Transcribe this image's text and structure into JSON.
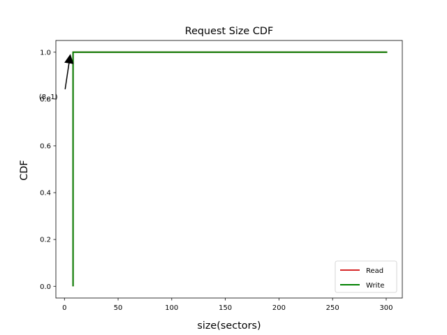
{
  "chart_data": {
    "type": "line",
    "title": "Request Size CDF",
    "xlabel": "size(sectors)",
    "ylabel": "CDF",
    "xlim": [
      -8,
      315
    ],
    "ylim": [
      -0.05,
      1.05
    ],
    "xticks": [
      0,
      50,
      100,
      150,
      200,
      250,
      300
    ],
    "yticks": [
      0.0,
      0.2,
      0.4,
      0.6,
      0.8,
      1.0
    ],
    "xtick_labels": [
      "0",
      "50",
      "100",
      "150",
      "200",
      "250",
      "300"
    ],
    "ytick_labels": [
      "0.0",
      "0.2",
      "0.4",
      "0.6",
      "0.8",
      "1.0"
    ],
    "grid": false,
    "legend_position": "lower-right",
    "series": [
      {
        "name": "Read",
        "color": "#d62728",
        "x": [
          8,
          8,
          301
        ],
        "y": [
          0,
          1,
          1
        ]
      },
      {
        "name": "Write",
        "color": "#008000",
        "x": [
          8,
          8,
          301
        ],
        "y": [
          0,
          1,
          1
        ]
      }
    ],
    "annotation": {
      "text": "(8, 1)",
      "x": 8,
      "y": 1,
      "text_x": -15,
      "text_y": 0.8
    }
  }
}
